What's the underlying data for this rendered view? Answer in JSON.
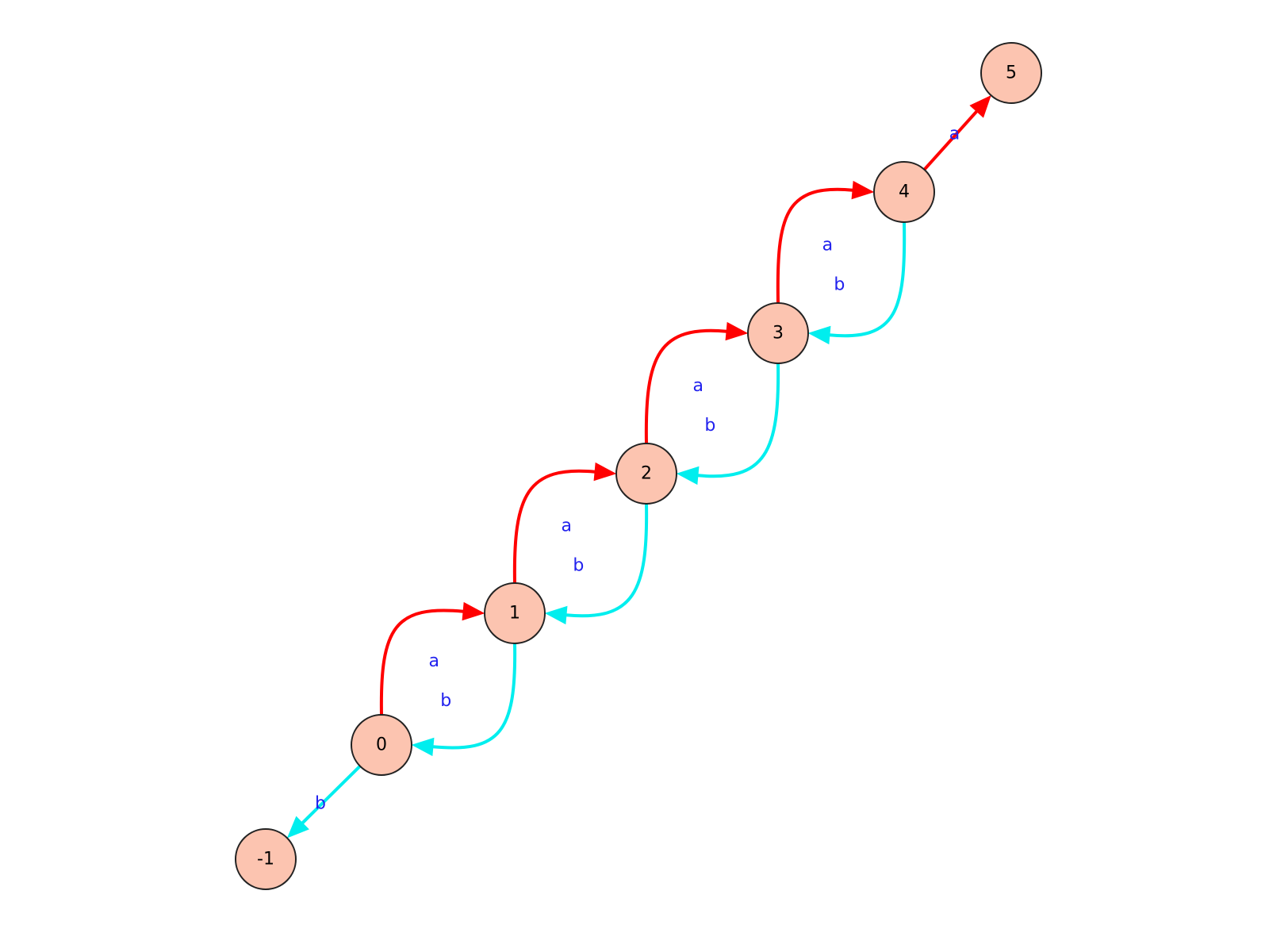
{
  "graph": {
    "directed": true,
    "style": {
      "node_fill": "#fcc4b0",
      "node_stroke": "#222222",
      "label_color": "#2222ee",
      "edge_colors": {
        "a": "#ff0000",
        "b": "#00eeee"
      }
    },
    "nodes": [
      {
        "id": "-1",
        "label": "-1"
      },
      {
        "id": "0",
        "label": "0"
      },
      {
        "id": "1",
        "label": "1"
      },
      {
        "id": "2",
        "label": "2"
      },
      {
        "id": "3",
        "label": "3"
      },
      {
        "id": "4",
        "label": "4"
      },
      {
        "id": "5",
        "label": "5"
      }
    ],
    "edges": [
      {
        "from": "0",
        "to": "-1",
        "label": "b"
      },
      {
        "from": "0",
        "to": "1",
        "label": "a"
      },
      {
        "from": "1",
        "to": "0",
        "label": "b"
      },
      {
        "from": "1",
        "to": "2",
        "label": "a"
      },
      {
        "from": "2",
        "to": "1",
        "label": "b"
      },
      {
        "from": "2",
        "to": "3",
        "label": "a"
      },
      {
        "from": "3",
        "to": "2",
        "label": "b"
      },
      {
        "from": "3",
        "to": "4",
        "label": "a"
      },
      {
        "from": "4",
        "to": "3",
        "label": "b"
      },
      {
        "from": "4",
        "to": "5",
        "label": "a"
      }
    ]
  }
}
